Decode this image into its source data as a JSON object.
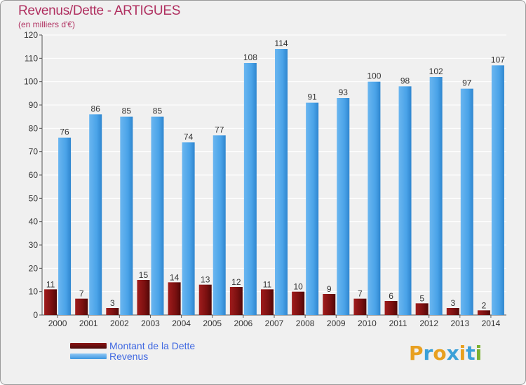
{
  "title": "Revenus/Dette - ARTIGUES",
  "subtitle": "(en milliers d'€)",
  "legend": {
    "dette_label": "Montant de la Dette",
    "revenus_label": "Revenus"
  },
  "logo": {
    "letters": [
      "P",
      "r",
      "o",
      "x",
      "i",
      "t",
      "i"
    ],
    "colors": [
      "#e8a020",
      "#3aa0d8",
      "#e8a020",
      "#3aa0d8",
      "#e8a020",
      "#3aa0d8",
      "#7ab030"
    ]
  },
  "colors": {
    "dette": "#7a1010",
    "revenus": "#4aa3e8",
    "grid": "#ffffff",
    "background": "#f0f0f0"
  },
  "chart_data": {
    "type": "bar",
    "categories": [
      "2000",
      "2001",
      "2002",
      "2003",
      "2004",
      "2005",
      "2006",
      "2007",
      "2008",
      "2009",
      "2010",
      "2011",
      "2012",
      "2013",
      "2014"
    ],
    "series": [
      {
        "name": "Montant de la Dette",
        "values": [
          11,
          7,
          3,
          15,
          14,
          13,
          12,
          11,
          10,
          9,
          7,
          6,
          5,
          3,
          2
        ]
      },
      {
        "name": "Revenus",
        "values": [
          76,
          86,
          85,
          85,
          74,
          77,
          108,
          114,
          91,
          93,
          100,
          98,
          102,
          97,
          107
        ]
      }
    ],
    "ylim": [
      0,
      120
    ],
    "yticks": [
      0,
      10,
      20,
      30,
      40,
      50,
      60,
      70,
      80,
      90,
      100,
      110,
      120
    ],
    "grid": true,
    "legend_position": "bottom-left"
  }
}
